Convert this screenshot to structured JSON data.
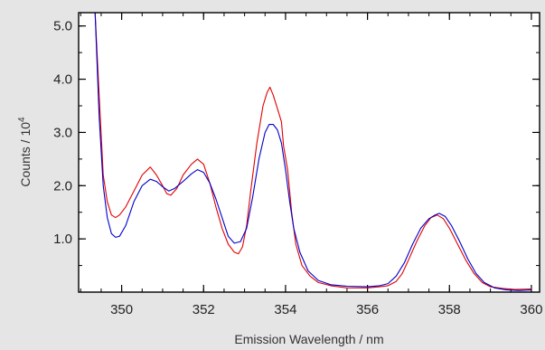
{
  "chart_data": {
    "type": "line",
    "xlabel": "Emission Wavelength / nm",
    "ylabel_main": "Counts / 10",
    "ylabel_sup": "4",
    "xlim": [
      348.95,
      360.2
    ],
    "ylim": [
      0,
      5.25
    ],
    "x_ticks": [
      350,
      352,
      354,
      356,
      358,
      360
    ],
    "x_tick_labels": [
      "350",
      "352",
      "354",
      "356",
      "358",
      "360"
    ],
    "y_ticks": [
      1.0,
      2.0,
      3.0,
      4.0,
      5.0
    ],
    "y_tick_labels": [
      "1.0",
      "2.0",
      "3.0",
      "4.0",
      "5.0"
    ],
    "x_minor_step": 0.5,
    "y_minor_step": 0.5,
    "grid": false,
    "series": [
      {
        "color": "#e00000",
        "points": [
          [
            349.35,
            5.3
          ],
          [
            349.45,
            3.7
          ],
          [
            349.55,
            2.2
          ],
          [
            349.65,
            1.7
          ],
          [
            349.75,
            1.45
          ],
          [
            349.85,
            1.4
          ],
          [
            349.95,
            1.45
          ],
          [
            350.1,
            1.6
          ],
          [
            350.3,
            1.9
          ],
          [
            350.5,
            2.2
          ],
          [
            350.7,
            2.35
          ],
          [
            350.85,
            2.2
          ],
          [
            351.0,
            2.0
          ],
          [
            351.1,
            1.85
          ],
          [
            351.2,
            1.82
          ],
          [
            351.35,
            1.95
          ],
          [
            351.5,
            2.2
          ],
          [
            351.7,
            2.4
          ],
          [
            351.85,
            2.5
          ],
          [
            352.0,
            2.4
          ],
          [
            352.15,
            2.05
          ],
          [
            352.3,
            1.6
          ],
          [
            352.45,
            1.2
          ],
          [
            352.6,
            0.9
          ],
          [
            352.75,
            0.75
          ],
          [
            352.85,
            0.72
          ],
          [
            352.95,
            0.85
          ],
          [
            353.05,
            1.25
          ],
          [
            353.15,
            1.9
          ],
          [
            353.3,
            2.8
          ],
          [
            353.45,
            3.5
          ],
          [
            353.55,
            3.75
          ],
          [
            353.62,
            3.85
          ],
          [
            353.7,
            3.7
          ],
          [
            353.8,
            3.45
          ],
          [
            353.9,
            3.2
          ],
          [
            353.95,
            2.75
          ],
          [
            354.05,
            2.3
          ],
          [
            354.15,
            1.5
          ],
          [
            354.25,
            0.9
          ],
          [
            354.4,
            0.5
          ],
          [
            354.6,
            0.3
          ],
          [
            354.8,
            0.18
          ],
          [
            355.1,
            0.12
          ],
          [
            355.5,
            0.08
          ],
          [
            356.0,
            0.08
          ],
          [
            356.3,
            0.1
          ],
          [
            356.5,
            0.12
          ],
          [
            356.7,
            0.2
          ],
          [
            356.85,
            0.35
          ],
          [
            357.0,
            0.6
          ],
          [
            357.2,
            0.95
          ],
          [
            357.4,
            1.25
          ],
          [
            357.55,
            1.4
          ],
          [
            357.7,
            1.45
          ],
          [
            357.85,
            1.38
          ],
          [
            358.0,
            1.2
          ],
          [
            358.2,
            0.9
          ],
          [
            358.4,
            0.6
          ],
          [
            358.6,
            0.35
          ],
          [
            358.8,
            0.18
          ],
          [
            359.0,
            0.1
          ],
          [
            359.3,
            0.07
          ],
          [
            359.6,
            0.05
          ],
          [
            360.0,
            0.06
          ]
        ]
      },
      {
        "color": "#0000cc",
        "points": [
          [
            349.35,
            5.3
          ],
          [
            349.45,
            3.3
          ],
          [
            349.55,
            2.0
          ],
          [
            349.65,
            1.4
          ],
          [
            349.75,
            1.1
          ],
          [
            349.85,
            1.03
          ],
          [
            349.95,
            1.05
          ],
          [
            350.1,
            1.25
          ],
          [
            350.3,
            1.7
          ],
          [
            350.5,
            2.0
          ],
          [
            350.7,
            2.12
          ],
          [
            350.85,
            2.08
          ],
          [
            351.0,
            1.98
          ],
          [
            351.15,
            1.9
          ],
          [
            351.3,
            1.95
          ],
          [
            351.5,
            2.08
          ],
          [
            351.7,
            2.22
          ],
          [
            351.85,
            2.3
          ],
          [
            352.0,
            2.25
          ],
          [
            352.15,
            2.05
          ],
          [
            352.3,
            1.75
          ],
          [
            352.45,
            1.4
          ],
          [
            352.6,
            1.05
          ],
          [
            352.75,
            0.92
          ],
          [
            352.9,
            0.95
          ],
          [
            353.05,
            1.2
          ],
          [
            353.2,
            1.8
          ],
          [
            353.35,
            2.5
          ],
          [
            353.5,
            3.0
          ],
          [
            353.6,
            3.15
          ],
          [
            353.7,
            3.15
          ],
          [
            353.8,
            3.05
          ],
          [
            353.9,
            2.8
          ],
          [
            354.0,
            2.3
          ],
          [
            354.1,
            1.7
          ],
          [
            354.2,
            1.2
          ],
          [
            354.35,
            0.75
          ],
          [
            354.55,
            0.4
          ],
          [
            354.8,
            0.22
          ],
          [
            355.1,
            0.14
          ],
          [
            355.5,
            0.11
          ],
          [
            356.0,
            0.1
          ],
          [
            356.3,
            0.12
          ],
          [
            356.5,
            0.16
          ],
          [
            356.7,
            0.3
          ],
          [
            356.9,
            0.55
          ],
          [
            357.1,
            0.9
          ],
          [
            357.3,
            1.2
          ],
          [
            357.5,
            1.38
          ],
          [
            357.65,
            1.45
          ],
          [
            357.75,
            1.48
          ],
          [
            357.9,
            1.42
          ],
          [
            358.05,
            1.25
          ],
          [
            358.25,
            0.95
          ],
          [
            358.45,
            0.62
          ],
          [
            358.65,
            0.35
          ],
          [
            358.85,
            0.18
          ],
          [
            359.1,
            0.08
          ],
          [
            359.4,
            0.04
          ],
          [
            359.7,
            0.03
          ],
          [
            360.0,
            0.04
          ]
        ]
      }
    ]
  }
}
